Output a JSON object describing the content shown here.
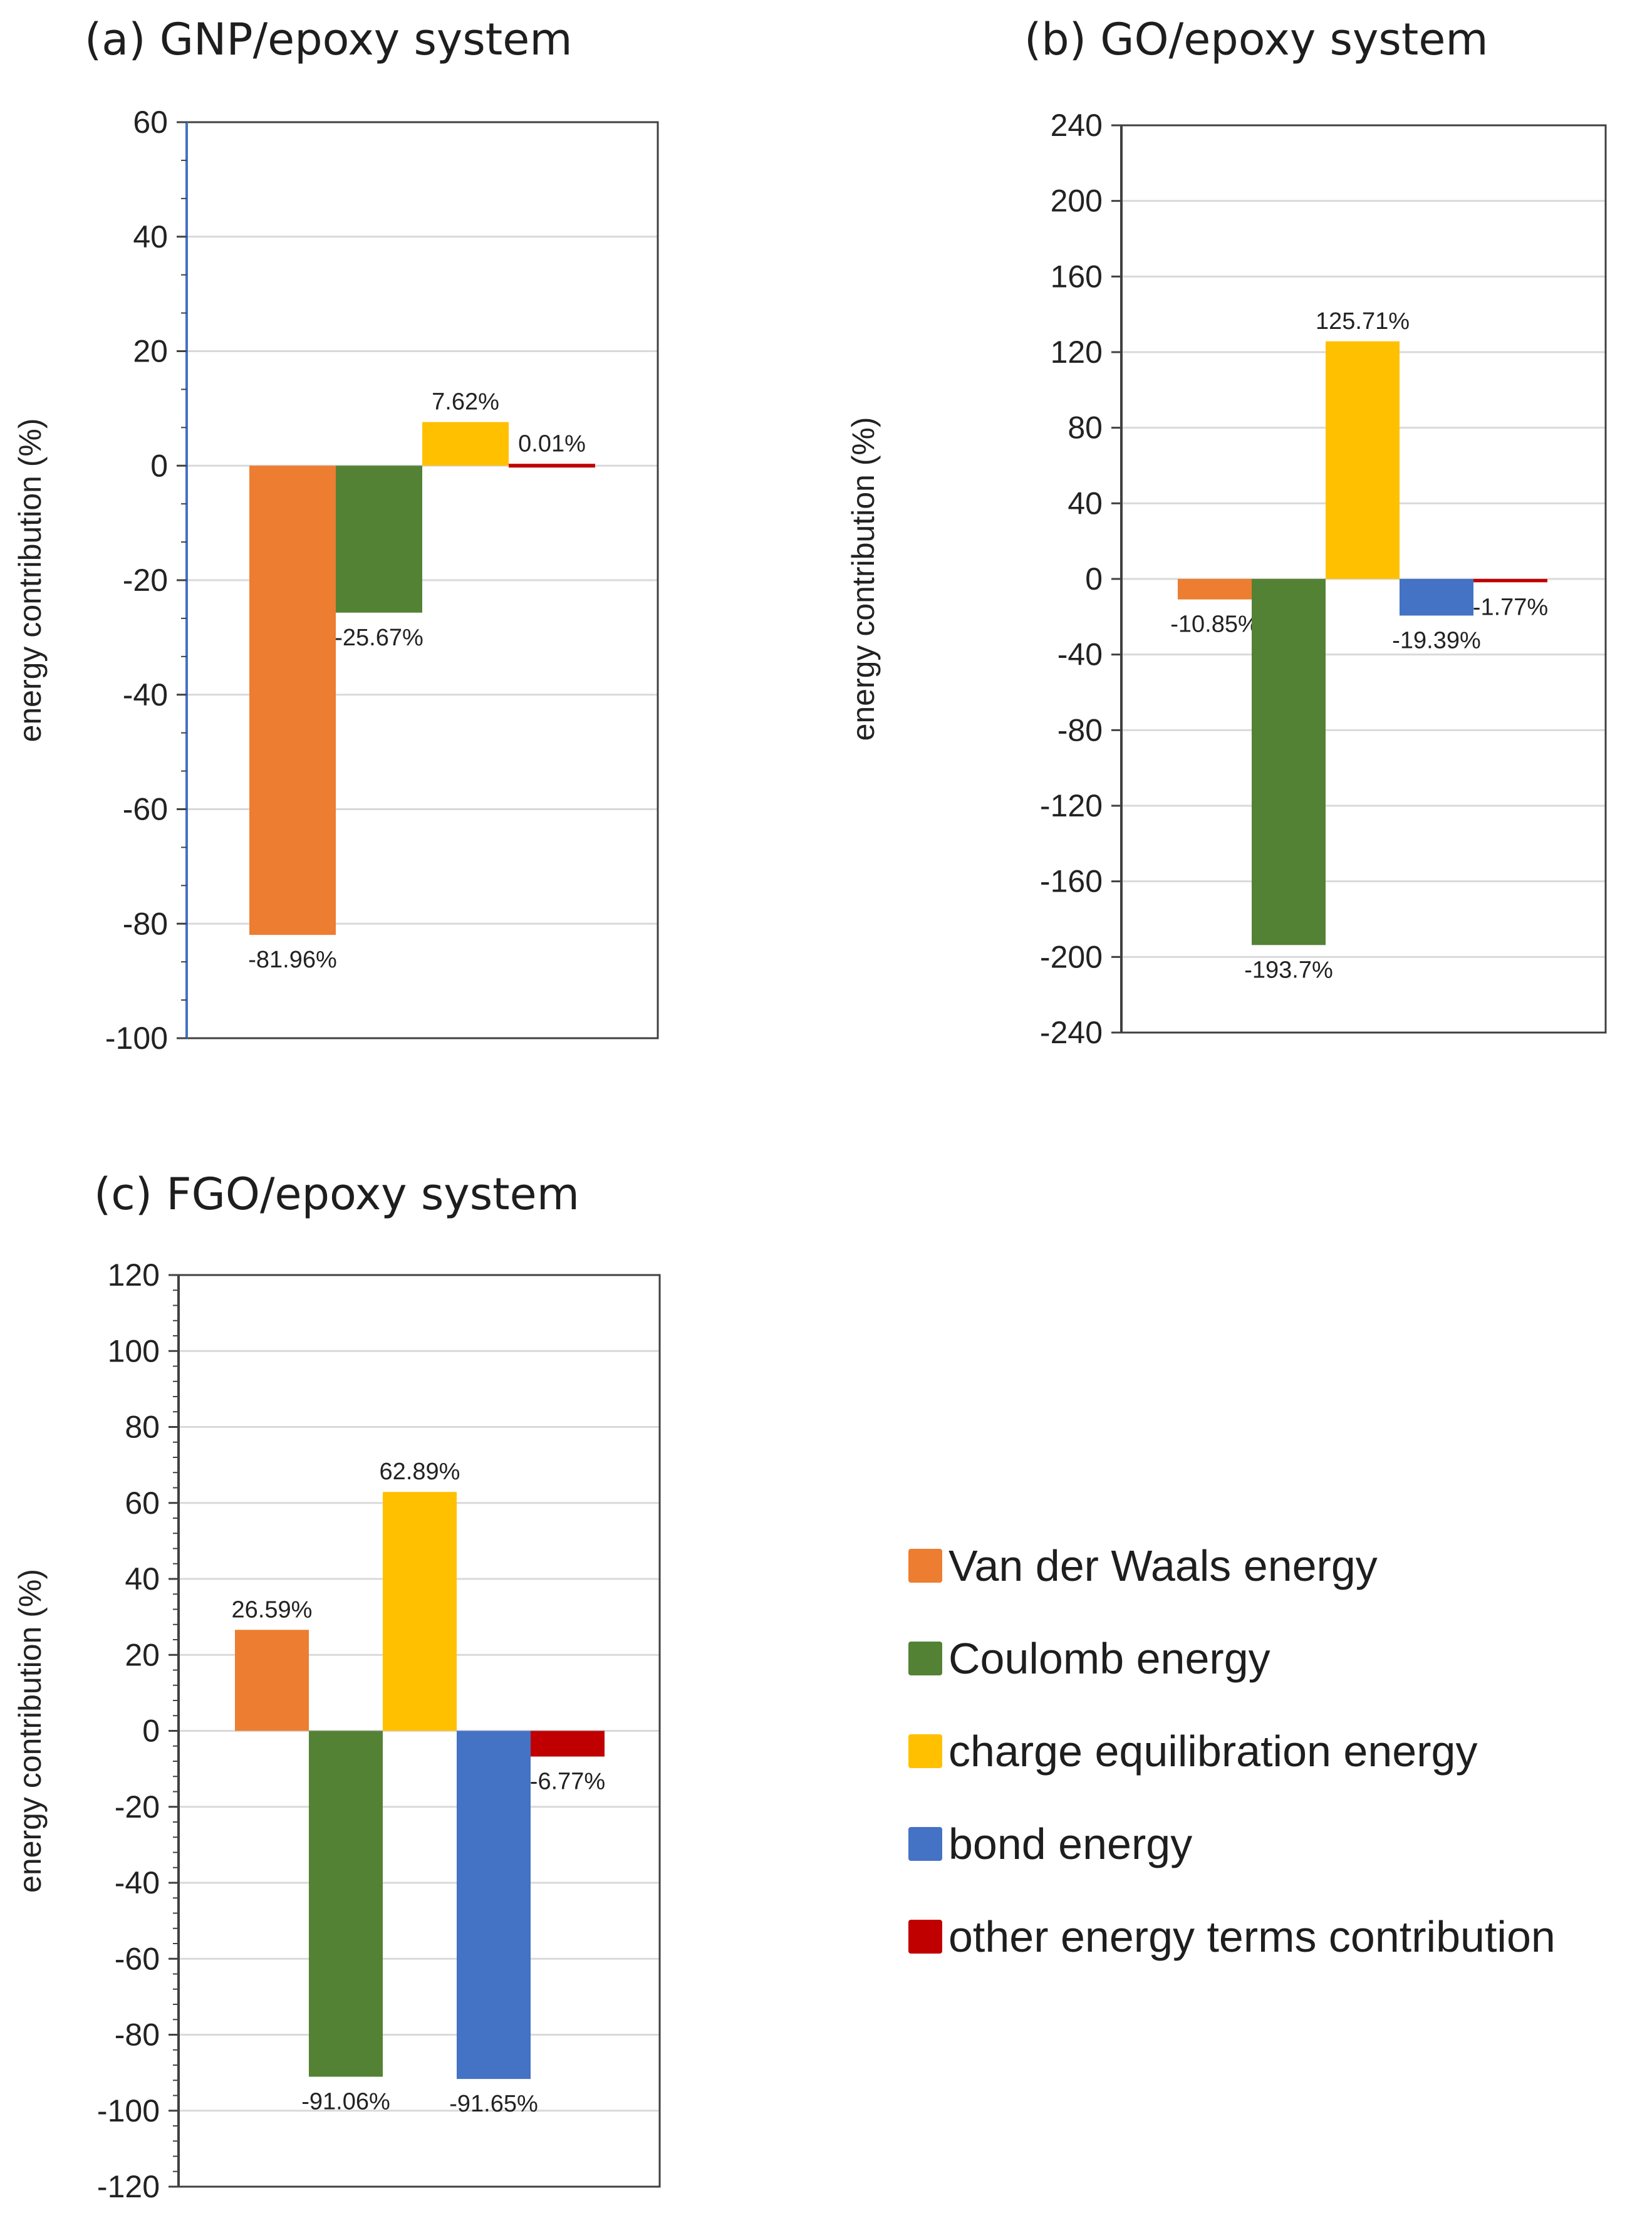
{
  "series_colors": {
    "vdw": "#ED7D31",
    "coulomb": "#548235",
    "charge": "#FFC000",
    "bond": "#4472C4",
    "other": "#C00000"
  },
  "legend": [
    {
      "key": "vdw",
      "label": "Van der Waals energy"
    },
    {
      "key": "coulomb",
      "label": "Coulomb energy"
    },
    {
      "key": "charge",
      "label": "charge equilibration energy"
    },
    {
      "key": "bond",
      "label": "bond energy"
    },
    {
      "key": "other",
      "label": "other energy terms contribution"
    }
  ],
  "chart_data": [
    {
      "type": "bar",
      "title": "(a) GNP/epoxy system",
      "ylabel": "energy contribution (%)",
      "ylim": [
        -100,
        60
      ],
      "yticks": [
        60,
        40,
        20,
        0,
        -20,
        -40,
        -60,
        -80,
        -100
      ],
      "grid": true,
      "series": [
        {
          "key": "vdw",
          "name": "Van der Waals energy",
          "value": -81.96,
          "label": "-81.96%"
        },
        {
          "key": "coulomb",
          "name": "Coulomb energy",
          "value": -25.67,
          "label": "-25.67%"
        },
        {
          "key": "charge",
          "name": "charge equilibration energy",
          "value": 7.62,
          "label": "7.62%"
        },
        {
          "key": "other",
          "name": "other energy terms contribution",
          "value": 0.01,
          "label": "0.01%"
        }
      ]
    },
    {
      "type": "bar",
      "title": "(b) GO/epoxy system",
      "ylabel": "energy contribution (%)",
      "ylim": [
        -240,
        240
      ],
      "yticks": [
        240,
        200,
        160,
        120,
        80,
        40,
        0,
        -40,
        -80,
        -120,
        -160,
        -200,
        -240
      ],
      "grid": true,
      "series": [
        {
          "key": "vdw",
          "name": "Van der Waals energy",
          "value": -10.85,
          "label": "-10.85%"
        },
        {
          "key": "coulomb",
          "name": "Coulomb energy",
          "value": -193.7,
          "label": "-193.7%"
        },
        {
          "key": "charge",
          "name": "charge equilibration energy",
          "value": 125.71,
          "label": "125.71%"
        },
        {
          "key": "bond",
          "name": "bond energy",
          "value": -19.39,
          "label": "-19.39%"
        },
        {
          "key": "other",
          "name": "other energy terms contribution",
          "value": -1.77,
          "label": "-1.77%"
        }
      ]
    },
    {
      "type": "bar",
      "title": "(c) FGO/epoxy system",
      "ylabel": "energy contribution (%)",
      "ylim": [
        -120,
        120
      ],
      "yticks": [
        120,
        100,
        80,
        60,
        40,
        20,
        0,
        -20,
        -40,
        -60,
        -80,
        -100,
        -120
      ],
      "grid": true,
      "series": [
        {
          "key": "vdw",
          "name": "Van der Waals energy",
          "value": 26.59,
          "label": "26.59%"
        },
        {
          "key": "coulomb",
          "name": "Coulomb energy",
          "value": -91.06,
          "label": "-91.06%"
        },
        {
          "key": "charge",
          "name": "charge equilibration energy",
          "value": 62.89,
          "label": "62.89%"
        },
        {
          "key": "bond",
          "name": "bond energy",
          "value": -91.65,
          "label": "-91.65%"
        },
        {
          "key": "other",
          "name": "other energy terms contribution",
          "value": -6.77,
          "label": "-6.77%"
        }
      ]
    }
  ]
}
